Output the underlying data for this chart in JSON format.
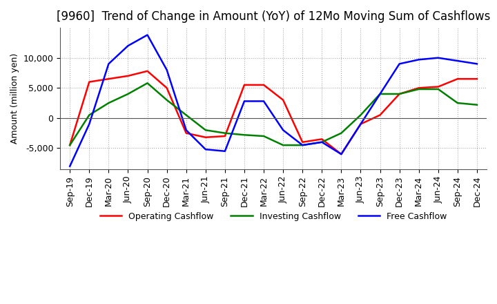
{
  "title": "[9960]  Trend of Change in Amount (YoY) of 12Mo Moving Sum of Cashflows",
  "ylabel": "Amount (million yen)",
  "x_labels": [
    "Sep-19",
    "Dec-19",
    "Mar-20",
    "Jun-20",
    "Sep-20",
    "Dec-20",
    "Mar-21",
    "Jun-21",
    "Sep-21",
    "Dec-21",
    "Mar-22",
    "Jun-22",
    "Sep-22",
    "Dec-22",
    "Mar-23",
    "Jun-23",
    "Sep-23",
    "Dec-23",
    "Mar-24",
    "Jun-24",
    "Sep-24",
    "Dec-24"
  ],
  "operating": [
    -4500,
    6000,
    6500,
    7000,
    7800,
    5000,
    -2500,
    -3200,
    -3000,
    5500,
    5500,
    3000,
    -4000,
    -3500,
    -6000,
    -1000,
    500,
    4000,
    5000,
    5200,
    6500,
    6500
  ],
  "investing": [
    -4500,
    500,
    2500,
    4000,
    5800,
    3000,
    500,
    -2000,
    -2500,
    -2800,
    -3000,
    -4500,
    -4500,
    -4000,
    -2500,
    500,
    4000,
    4000,
    4800,
    4800,
    2500,
    2200
  ],
  "free": [
    -8000,
    -1000,
    9000,
    12000,
    13800,
    8000,
    -2000,
    -5200,
    -5500,
    2800,
    2800,
    -2000,
    -4500,
    -4000,
    -6000,
    -1000,
    4000,
    9000,
    9700,
    10000,
    9500,
    9000
  ],
  "operating_color": "#ff0000",
  "investing_color": "#008000",
  "free_color": "#0000ff",
  "ylim": [
    -8500,
    15000
  ],
  "yticks": [
    -5000,
    0,
    5000,
    10000
  ],
  "grid": true,
  "background_color": "#ffffff",
  "title_fontsize": 12,
  "axis_fontsize": 9,
  "tick_fontsize": 9
}
